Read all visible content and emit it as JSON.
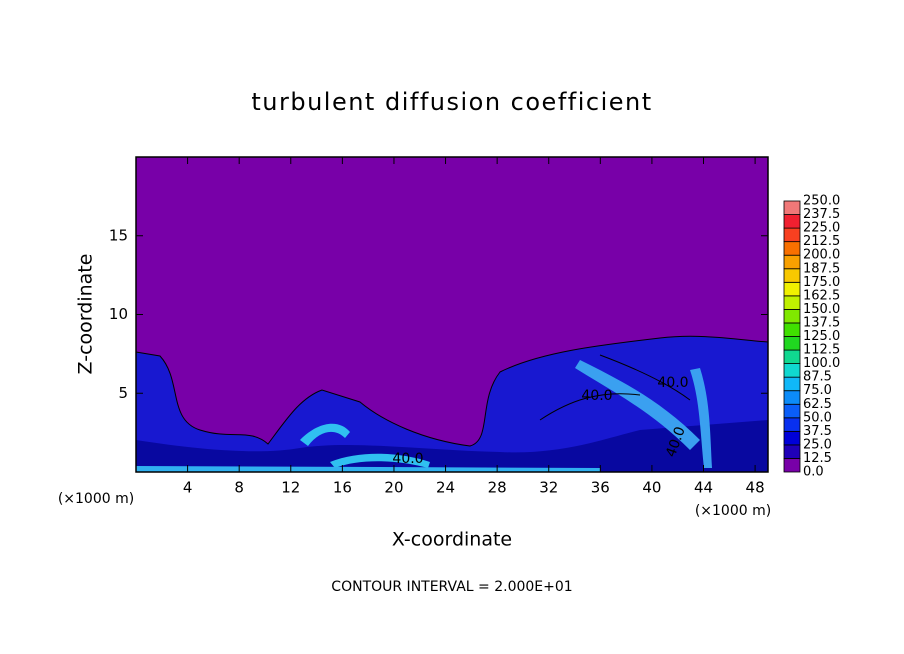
{
  "chart_data": {
    "type": "contour",
    "title": "turbulent diffusion coefficient",
    "x_label": "X-coordinate",
    "y_label": "Z-coordinate",
    "x_unit_label": "(×1000 m)",
    "y_unit_label": "(×1000 m)",
    "footer": "CONTOUR INTERVAL = 2.000E+01",
    "contour_labels": [
      "40.0",
      "40.0",
      "40.0",
      "40.0"
    ],
    "xlim": [
      0,
      49
    ],
    "ylim": [
      0,
      20
    ],
    "xticks": [
      4,
      8,
      12,
      16,
      20,
      24,
      28,
      32,
      36,
      40,
      44,
      48
    ],
    "yticks": [
      5,
      10,
      15
    ],
    "colorbar": {
      "levels": [
        {
          "value": 0,
          "label": "0.0"
        },
        12.5,
        {
          "value": 25,
          "label": "25.0"
        },
        37.5,
        {
          "value": 50,
          "label": "50.0"
        },
        62.5,
        {
          "value": 75,
          "label": "75.0"
        },
        87.5,
        {
          "value": 100,
          "label": "100.0"
        },
        112.5,
        {
          "value": 125,
          "label": "125.0"
        },
        137.5,
        {
          "value": 150,
          "label": "150.0"
        },
        162.5,
        {
          "value": 175,
          "label": "175.0"
        },
        187.5,
        {
          "value": 200,
          "label": "200.0"
        },
        212.5,
        {
          "value": 225,
          "label": "225.0"
        },
        237.5,
        {
          "value": 250,
          "label": "250.0"
        }
      ],
      "colors": [
        "#7800a8",
        "#2000b8",
        "#0000d8",
        "#0830f0",
        "#0a5ef8",
        "#0c8cf8",
        "#10b8f8",
        "#10d8d0",
        "#10d890",
        "#20d820",
        "#40e000",
        "#80e800",
        "#c0f000",
        "#f0f000",
        "#f8c800",
        "#f8a000",
        "#f87000",
        "#f84020",
        "#f02030",
        "#f07878"
      ]
    }
  }
}
